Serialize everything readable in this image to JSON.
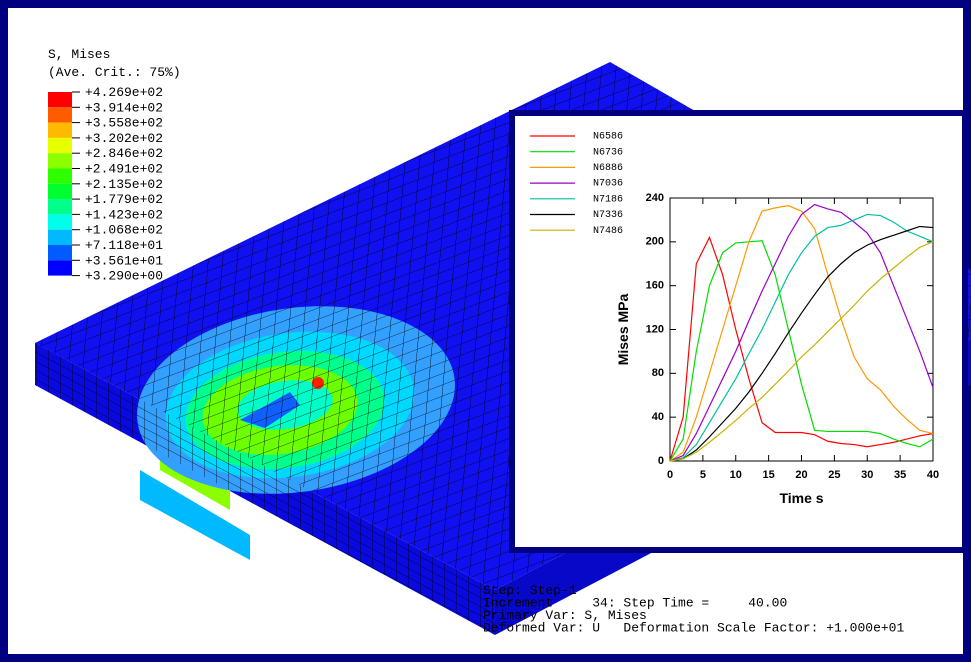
{
  "legend": {
    "title": [
      "S, Mises",
      "(Ave. Crit.: 75%)"
    ],
    "labels": [
      "+4.269e+02",
      "+3.914e+02",
      "+3.558e+02",
      "+3.202e+02",
      "+2.846e+02",
      "+2.491e+02",
      "+2.135e+02",
      "+1.779e+02",
      "+1.423e+02",
      "+1.068e+02",
      "+7.118e+01",
      "+3.561e+01",
      "+3.290e+00"
    ],
    "colors": [
      "#ff0000",
      "#ff5c00",
      "#ffb900",
      "#e8ff00",
      "#8bff00",
      "#2eff00",
      "#00ff2e",
      "#00ff8b",
      "#00ffe8",
      "#00b9ff",
      "#005cff",
      "#0000ff"
    ]
  },
  "chart_data": {
    "type": "line",
    "xlabel": "Time s",
    "ylabel": "Mises MPa",
    "x": [
      0,
      2,
      4,
      6,
      8,
      10,
      12,
      14,
      16,
      18,
      20,
      22,
      24,
      26,
      28,
      30,
      32,
      34,
      36,
      38,
      40
    ],
    "xlim": [
      0,
      40
    ],
    "xticks": [
      0,
      5,
      10,
      15,
      20,
      25,
      30,
      35,
      40
    ],
    "ylim": [
      0,
      240
    ],
    "yticks": [
      0,
      40,
      80,
      120,
      160,
      200,
      240
    ],
    "series": [
      {
        "name": "N6586",
        "color": "#ff0000",
        "values": [
          0,
          40,
          180,
          204,
          170,
          120,
          75,
          35,
          26,
          26,
          26,
          24,
          18,
          16,
          15,
          13,
          15,
          17,
          20,
          23,
          25
        ]
      },
      {
        "name": "N6736",
        "color": "#00dd00",
        "values": [
          0,
          20,
          100,
          160,
          190,
          199,
          200,
          201,
          170,
          120,
          70,
          28,
          27,
          27,
          27,
          27,
          25,
          20,
          16,
          13,
          20
        ]
      },
      {
        "name": "N6886",
        "color": "#ff9900",
        "values": [
          0,
          8,
          40,
          80,
          120,
          160,
          200,
          228,
          231,
          233,
          228,
          212,
          170,
          130,
          95,
          75,
          65,
          50,
          38,
          28,
          25
        ]
      },
      {
        "name": "N7036",
        "color": "#9900cc",
        "values": [
          0,
          5,
          25,
          50,
          75,
          100,
          128,
          155,
          180,
          205,
          225,
          234,
          230,
          227,
          218,
          208,
          190,
          160,
          130,
          100,
          67
        ]
      },
      {
        "name": "N7186",
        "color": "#00c0a0",
        "values": [
          0,
          3,
          15,
          35,
          55,
          75,
          98,
          120,
          145,
          170,
          190,
          205,
          213,
          215,
          220,
          225,
          224,
          218,
          210,
          205,
          200
        ]
      },
      {
        "name": "N7336",
        "color": "#000000",
        "values": [
          0,
          2,
          10,
          22,
          35,
          48,
          63,
          80,
          98,
          117,
          135,
          152,
          168,
          180,
          190,
          197,
          202,
          206,
          210,
          214,
          213
        ]
      },
      {
        "name": "N7486",
        "color": "#c8b400",
        "values": [
          0,
          2,
          8,
          17,
          27,
          37,
          48,
          58,
          70,
          82,
          95,
          106,
          118,
          130,
          142,
          155,
          166,
          176,
          186,
          195,
          200
        ]
      }
    ]
  },
  "info": [
    "Step: Step-1",
    "Increment     34: Step Time =     40.00",
    "Primary Var: S, Mises",
    "Deformed Var: U   Deformation Scale Factor: +1.000e+01"
  ]
}
